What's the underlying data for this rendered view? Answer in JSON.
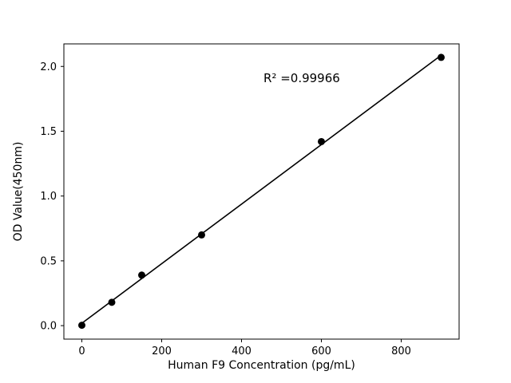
{
  "chart_data": {
    "type": "scatter",
    "title": "",
    "xlabel": "Human F9 Concentration (pg/mL)",
    "ylabel": "OD Value(450nm)",
    "x": [
      0,
      75,
      150,
      300,
      600,
      900
    ],
    "y": [
      0.003,
      0.18,
      0.39,
      0.7,
      1.42,
      2.07
    ],
    "fit_line": true,
    "annotation": {
      "text": "R² =0.99966",
      "x": 455,
      "y": 1.88
    },
    "xticks": [
      0,
      200,
      400,
      600,
      800
    ],
    "xtick_labels": [
      "0",
      "200",
      "400",
      "600",
      "800"
    ],
    "yticks": [
      0.0,
      0.5,
      1.0,
      1.5,
      2.0
    ],
    "ytick_labels": [
      "0.0",
      "0.5",
      "1.0",
      "1.5",
      "2.0"
    ],
    "xlim": [
      -45,
      945
    ],
    "ylim": [
      -0.104,
      2.174
    ],
    "grid": false,
    "legend": null,
    "marker_color": "#000000",
    "line_color": "#000000",
    "axes_color": "#000000",
    "background_color": "#ffffff"
  }
}
